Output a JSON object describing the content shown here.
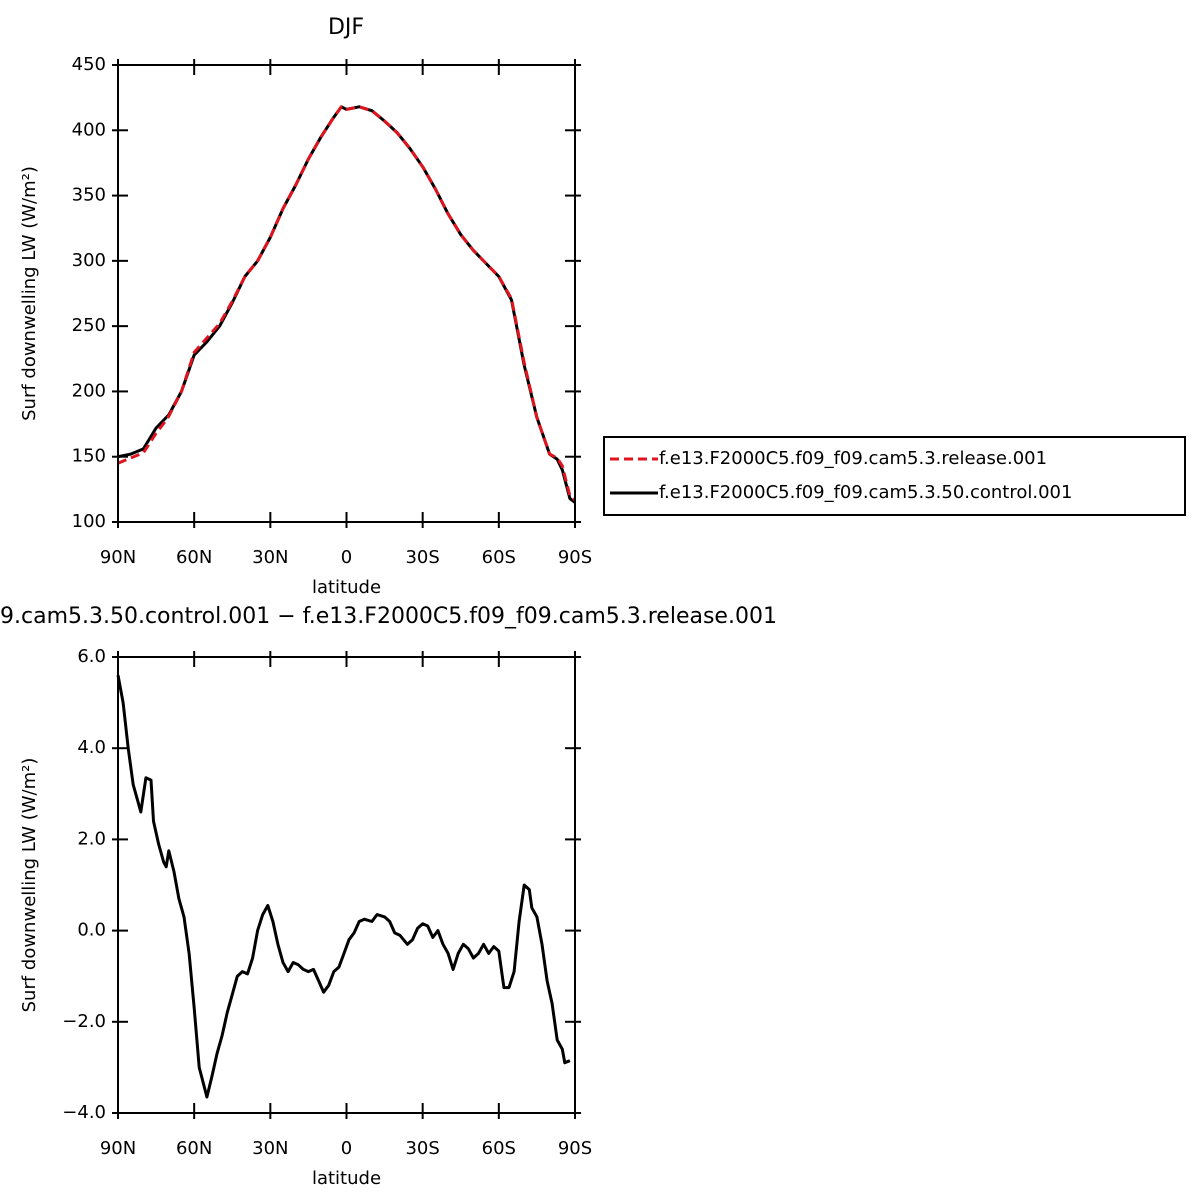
{
  "chart_data": [
    {
      "type": "line",
      "title": "DJF",
      "xlabel": "latitude",
      "ylabel": "Surf downwelling LW (W/m²)",
      "x": [
        90,
        85,
        80,
        75,
        71,
        70,
        65,
        60,
        55,
        50,
        45,
        40,
        35,
        30,
        25,
        20,
        15,
        10,
        5,
        2,
        0,
        -5,
        -10,
        -15,
        -20,
        -25,
        -30,
        -35,
        -40,
        -45,
        -50,
        -55,
        -60,
        -65,
        -70,
        -75,
        -80,
        -83,
        -85,
        -88,
        -90
      ],
      "series": [
        {
          "name": "f.e13.F2000C5.f09_f09.cam5.3.release.001",
          "color": "#e0141e",
          "dash": true,
          "values": [
            145,
            149,
            153,
            168,
            178,
            181,
            200,
            230,
            241,
            252,
            269,
            288,
            300,
            318,
            340,
            358,
            378,
            395,
            410,
            418,
            416,
            418,
            415,
            407,
            398,
            386,
            372,
            355,
            336,
            320,
            308,
            298,
            288,
            271,
            222,
            180,
            152,
            149,
            143,
            120,
            117
          ]
        },
        {
          "name": "f.e13.F2000C5.f09_f09.cam5.3.50.control.001",
          "color": "#000000",
          "dash": false,
          "values": [
            150,
            152,
            156,
            172,
            180,
            182,
            200,
            228,
            238,
            250,
            268,
            288,
            300,
            318,
            340,
            358,
            378,
            395,
            410,
            418,
            416,
            418,
            415,
            407,
            398,
            386,
            372,
            355,
            336,
            320,
            308,
            298,
            288,
            270,
            220,
            180,
            152,
            148,
            140,
            118,
            115
          ]
        }
      ],
      "xlim": [
        90,
        -90
      ],
      "xticks": [
        {
          "value": 90,
          "label": "90N"
        },
        {
          "value": 60,
          "label": "60N"
        },
        {
          "value": 30,
          "label": "30N"
        },
        0,
        {
          "value": -30,
          "label": "30S"
        },
        {
          "value": -60,
          "label": "60S"
        },
        {
          "value": -90,
          "label": "90S"
        }
      ],
      "ylim": [
        100,
        450
      ],
      "yticks": [
        100,
        150,
        200,
        250,
        300,
        350,
        400,
        450
      ],
      "legend": "outside-right"
    },
    {
      "type": "line",
      "title": "9.cam5.3.50.control.001 − f.e13.F2000C5.f09_f09.cam5.3.release.001",
      "xlabel": "latitude",
      "ylabel": "Surf downwelling LW (W/m²)",
      "x": [
        90,
        88,
        86,
        84,
        82,
        81,
        79,
        77,
        76,
        74,
        72,
        71,
        70,
        68,
        66,
        64,
        62,
        60,
        58,
        55,
        53,
        51,
        49,
        47,
        45,
        43,
        41,
        39,
        37,
        35,
        33,
        31,
        29,
        27,
        25,
        23,
        21,
        19,
        17,
        15,
        13,
        11,
        9,
        7,
        5,
        3,
        1,
        -1,
        -3,
        -5,
        -7,
        -10,
        -12,
        -15,
        -17,
        -19,
        -21,
        -24,
        -26,
        -28,
        -30,
        -32,
        -34,
        -36,
        -38,
        -40,
        -42,
        -44,
        -46,
        -48,
        -50,
        -52,
        -54,
        -56,
        -58,
        -60,
        -62,
        -64,
        -66,
        -68,
        -70,
        -72,
        -73,
        -75,
        -77,
        -79,
        -81,
        -83,
        -85,
        -86,
        -88
      ],
      "series": [
        {
          "color": "#000000",
          "values": [
            5.6,
            5.0,
            4.0,
            3.2,
            2.8,
            2.6,
            3.35,
            3.3,
            2.4,
            1.9,
            1.5,
            1.4,
            1.75,
            1.3,
            0.7,
            0.3,
            -0.5,
            -1.7,
            -3.0,
            -3.65,
            -3.2,
            -2.7,
            -2.3,
            -1.8,
            -1.4,
            -1.0,
            -0.9,
            -0.95,
            -0.6,
            0.0,
            0.35,
            0.55,
            0.2,
            -0.3,
            -0.7,
            -0.9,
            -0.7,
            -0.75,
            -0.85,
            -0.9,
            -0.85,
            -1.1,
            -1.35,
            -1.2,
            -0.9,
            -0.8,
            -0.5,
            -0.2,
            -0.05,
            0.2,
            0.25,
            0.2,
            0.35,
            0.3,
            0.2,
            -0.05,
            -0.1,
            -0.3,
            -0.2,
            0.05,
            0.15,
            0.1,
            -0.15,
            0.0,
            -0.3,
            -0.5,
            -0.85,
            -0.5,
            -0.3,
            -0.4,
            -0.6,
            -0.5,
            -0.3,
            -0.5,
            -0.35,
            -0.45,
            -1.25,
            -1.25,
            -0.9,
            0.2,
            1.0,
            0.9,
            0.5,
            0.3,
            -0.3,
            -1.1,
            -1.6,
            -2.4,
            -2.6,
            -2.9,
            -2.85
          ]
        }
      ],
      "xlim": [
        90,
        -90
      ],
      "xticks": [
        {
          "value": 90,
          "label": "90N"
        },
        {
          "value": 60,
          "label": "60N"
        },
        {
          "value": 30,
          "label": "30N"
        },
        0,
        {
          "value": -30,
          "label": "30S"
        },
        {
          "value": -60,
          "label": "60S"
        },
        {
          "value": -90,
          "label": "90S"
        }
      ],
      "ylim": [
        -4,
        6
      ],
      "yticks": [
        {
          "value": -4,
          "label": "−4.0"
        },
        {
          "value": -2,
          "label": "−2.0"
        },
        {
          "value": 0,
          "label": "0.0"
        },
        {
          "value": 2,
          "label": "2.0"
        },
        {
          "value": 4,
          "label": "4.0"
        },
        {
          "value": 6,
          "label": "6.0"
        }
      ]
    }
  ]
}
